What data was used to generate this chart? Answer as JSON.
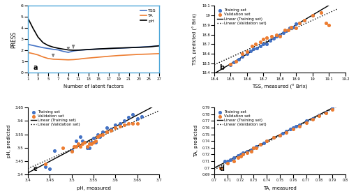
{
  "panel_a": {
    "x": [
      1,
      2,
      3,
      4,
      5,
      6,
      7,
      8,
      9,
      10,
      11,
      12,
      13,
      15,
      17,
      19,
      21,
      23,
      25,
      27
    ],
    "tss": [
      2.55,
      2.45,
      2.35,
      2.25,
      2.18,
      2.1,
      2.05,
      1.92,
      1.83,
      1.95,
      2.02,
      2.05,
      2.08,
      2.12,
      2.17,
      2.2,
      2.25,
      2.3,
      2.35,
      2.42
    ],
    "ta": [
      1.82,
      1.72,
      1.6,
      1.42,
      1.28,
      1.22,
      1.2,
      1.18,
      1.16,
      1.18,
      1.22,
      1.28,
      1.32,
      1.4,
      1.48,
      1.55,
      1.6,
      1.65,
      1.68,
      1.72
    ],
    "ph": [
      4.9,
      4.0,
      3.2,
      2.7,
      2.45,
      2.3,
      2.2,
      2.12,
      2.05,
      2.02,
      2.03,
      2.06,
      2.09,
      2.14,
      2.18,
      2.22,
      2.25,
      2.28,
      2.32,
      2.42
    ],
    "xlabel": "Number of latent factors",
    "ylabel": "PRESS",
    "label_a": "a",
    "ylim": [
      0,
      6
    ],
    "xlim": [
      1,
      27
    ],
    "xticks": [
      1,
      3,
      5,
      7,
      9,
      11,
      13,
      15,
      17,
      19,
      21,
      23,
      25,
      27
    ]
  },
  "panel_b": {
    "train_x": [
      18.5,
      18.52,
      18.55,
      18.57,
      18.6,
      18.62,
      18.64,
      18.66,
      18.68,
      18.7,
      18.72,
      18.74,
      18.76,
      18.78,
      18.8,
      18.82,
      18.84,
      18.86,
      18.88,
      18.9,
      18.92,
      18.95,
      19.0
    ],
    "train_y": [
      18.48,
      18.51,
      18.54,
      18.57,
      18.6,
      18.63,
      18.65,
      18.66,
      18.68,
      18.7,
      18.7,
      18.74,
      18.76,
      18.78,
      18.8,
      18.82,
      18.84,
      18.87,
      18.88,
      18.91,
      18.92,
      18.95,
      19.0
    ],
    "val_x": [
      18.5,
      18.53,
      18.57,
      18.6,
      18.63,
      18.65,
      18.68,
      18.7,
      18.72,
      18.75,
      18.78,
      18.8,
      18.83,
      18.85,
      18.87,
      18.9,
      18.92,
      18.95,
      19.0,
      19.05,
      19.08,
      19.1
    ],
    "val_y": [
      18.49,
      18.52,
      18.6,
      18.62,
      18.68,
      18.7,
      18.72,
      18.75,
      18.77,
      18.78,
      18.8,
      18.78,
      18.85,
      18.85,
      18.88,
      18.87,
      18.92,
      18.95,
      19.0,
      19.03,
      18.92,
      18.9
    ],
    "xlabel": "TSS, measured (° Brix)",
    "ylabel": "TSS, predicted (° Brix)",
    "label_b": "b",
    "xlim": [
      18.4,
      19.2
    ],
    "ylim": [
      18.4,
      19.1
    ],
    "xticks": [
      18.4,
      18.5,
      18.6,
      18.7,
      18.8,
      18.9,
      19.0,
      19.1,
      19.2
    ],
    "yticks": [
      18.4,
      18.5,
      18.6,
      18.7,
      18.8,
      18.9,
      19.0,
      19.1
    ],
    "xticklabels": [
      "18.4",
      "18.5",
      "18.6",
      "18.7",
      "18.8",
      "18.9",
      "19",
      "19.1",
      "19.2"
    ],
    "yticklabels": [
      "18.4",
      "18.5",
      "18.6",
      "18.7",
      "18.8",
      "18.9",
      "19",
      "19.1"
    ]
  },
  "panel_c": {
    "train_x": [
      3.44,
      3.45,
      3.46,
      3.5,
      3.51,
      3.52,
      3.525,
      3.53,
      3.535,
      3.54,
      3.545,
      3.55,
      3.555,
      3.56,
      3.565,
      3.57,
      3.58,
      3.59,
      3.6,
      3.61,
      3.62,
      3.63,
      3.64,
      3.65,
      3.66
    ],
    "train_y": [
      3.43,
      3.42,
      3.49,
      3.49,
      3.525,
      3.54,
      3.525,
      3.52,
      3.5,
      3.5,
      3.52,
      3.535,
      3.52,
      3.55,
      3.54,
      3.56,
      3.575,
      3.57,
      3.585,
      3.59,
      3.6,
      3.615,
      3.625,
      3.61,
      3.617
    ],
    "val_x": [
      3.44,
      3.48,
      3.5,
      3.505,
      3.51,
      3.515,
      3.52,
      3.525,
      3.53,
      3.535,
      3.54,
      3.545,
      3.55,
      3.555,
      3.56,
      3.565,
      3.57,
      3.58,
      3.59,
      3.6,
      3.61,
      3.62,
      3.63,
      3.64,
      3.65
    ],
    "val_y": [
      3.44,
      3.5,
      3.485,
      3.505,
      3.505,
      3.515,
      3.505,
      3.515,
      3.52,
      3.505,
      3.515,
      3.515,
      3.52,
      3.525,
      3.54,
      3.545,
      3.55,
      3.56,
      3.565,
      3.575,
      3.58,
      3.585,
      3.59,
      3.59,
      3.59
    ],
    "xlabel": "pH, measured",
    "ylabel": "pH, predicted",
    "label_c": "c",
    "xlim": [
      3.4,
      3.7
    ],
    "ylim": [
      3.4,
      3.65
    ],
    "xticks": [
      3.4,
      3.45,
      3.5,
      3.55,
      3.6,
      3.65,
      3.7
    ],
    "yticks": [
      3.4,
      3.45,
      3.5,
      3.55,
      3.6,
      3.65
    ]
  },
  "panel_d": {
    "train_x": [
      0.705,
      0.708,
      0.71,
      0.712,
      0.715,
      0.718,
      0.72,
      0.722,
      0.725,
      0.728,
      0.73,
      0.732,
      0.735,
      0.738,
      0.74,
      0.745,
      0.75,
      0.752,
      0.755,
      0.758,
      0.76,
      0.762,
      0.765,
      0.77,
      0.775,
      0.78,
      0.785,
      0.79
    ],
    "train_y": [
      0.7,
      0.71,
      0.71,
      0.712,
      0.715,
      0.718,
      0.72,
      0.722,
      0.725,
      0.727,
      0.73,
      0.732,
      0.735,
      0.737,
      0.74,
      0.745,
      0.749,
      0.752,
      0.755,
      0.758,
      0.76,
      0.762,
      0.764,
      0.77,
      0.774,
      0.779,
      0.783,
      0.789
    ],
    "val_x": [
      0.705,
      0.71,
      0.715,
      0.718,
      0.72,
      0.722,
      0.725,
      0.728,
      0.73,
      0.732,
      0.735,
      0.74,
      0.745,
      0.75,
      0.755,
      0.76,
      0.765,
      0.77,
      0.775,
      0.78,
      0.785,
      0.79
    ],
    "val_y": [
      0.7,
      0.707,
      0.71,
      0.715,
      0.717,
      0.72,
      0.722,
      0.725,
      0.73,
      0.73,
      0.735,
      0.74,
      0.745,
      0.748,
      0.753,
      0.758,
      0.762,
      0.767,
      0.772,
      0.778,
      0.782,
      0.787
    ],
    "xlabel": "TA, measured",
    "ylabel": "TA, predicted",
    "label_d": "d",
    "xlim": [
      0.7,
      0.8
    ],
    "ylim": [
      0.69,
      0.79
    ],
    "xticks": [
      0.7,
      0.71,
      0.72,
      0.73,
      0.74,
      0.75,
      0.76,
      0.77,
      0.78,
      0.79,
      0.8
    ],
    "yticks": [
      0.69,
      0.7,
      0.71,
      0.72,
      0.73,
      0.74,
      0.75,
      0.76,
      0.77,
      0.78,
      0.79
    ],
    "xticklabels": [
      "0.7",
      "0.71",
      "0.72",
      "0.73",
      "0.74",
      "0.75",
      "0.76",
      "0.77",
      "0.78",
      "0.79",
      "0.8"
    ],
    "yticklabels": [
      "0.69",
      "0.7",
      "0.71",
      "0.72",
      "0.73",
      "0.74",
      "0.75",
      "0.76",
      "0.77",
      "0.78",
      "0.79"
    ]
  },
  "colors": {
    "train": "#4472C4",
    "val": "#ED7D31",
    "tss_line": "#4472C4",
    "ta_line": "#ED7D31",
    "ph_line": "#000000",
    "box_color": "#4da6d9"
  }
}
